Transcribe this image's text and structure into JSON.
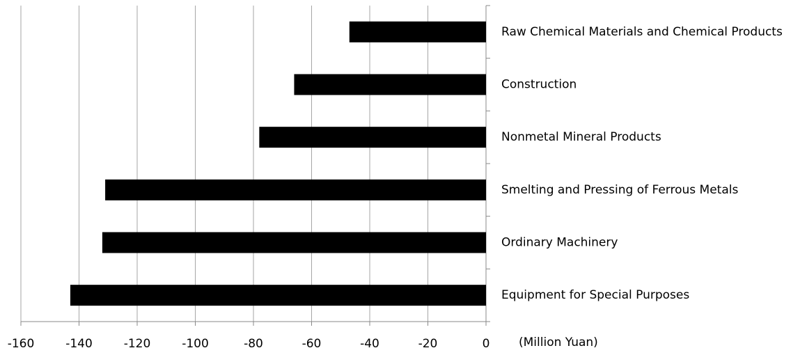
{
  "chart_data": {
    "type": "bar",
    "orientation": "horizontal",
    "x_axis_label": "(Million Yuan)",
    "categories": [
      "Raw Chemical Materials and Chemical Products",
      "Construction",
      "Nonmetal Mineral Products",
      "Smelting and Pressing of Ferrous Metals",
      "Ordinary Machinery",
      "Equipment for Special Purposes"
    ],
    "values": [
      -47,
      -66,
      -78,
      -131,
      -132,
      -143
    ],
    "color": "#000000",
    "xlim": [
      -160,
      0
    ],
    "xticks": [
      -160,
      -140,
      -120,
      -100,
      -80,
      -60,
      -40,
      -20,
      0
    ],
    "grid": true
  }
}
